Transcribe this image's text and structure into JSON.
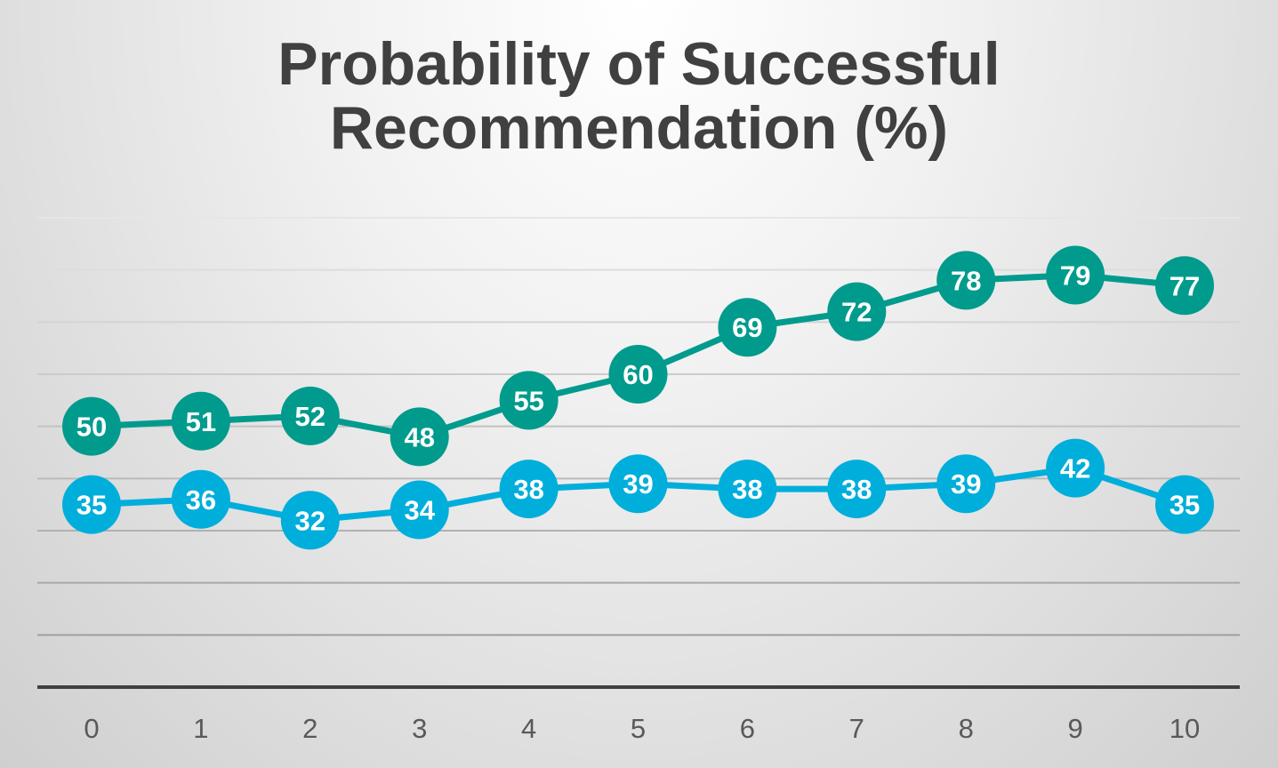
{
  "chart_data": {
    "type": "line",
    "title_lines": [
      "Probability of Successful",
      "Recommendation (%)"
    ],
    "categories": [
      "0",
      "1",
      "2",
      "3",
      "4",
      "5",
      "6",
      "7",
      "8",
      "9",
      "10"
    ],
    "series": [
      {
        "values": [
          50,
          51,
          52,
          48,
          55,
          60,
          69,
          72,
          78,
          79,
          77
        ],
        "color": "#009b8d"
      },
      {
        "values": [
          35,
          36,
          32,
          34,
          38,
          39,
          38,
          38,
          39,
          42,
          35
        ],
        "color": "#00aedb"
      }
    ],
    "ylim": [
      0,
      90
    ],
    "grid": true,
    "legend": "none"
  }
}
